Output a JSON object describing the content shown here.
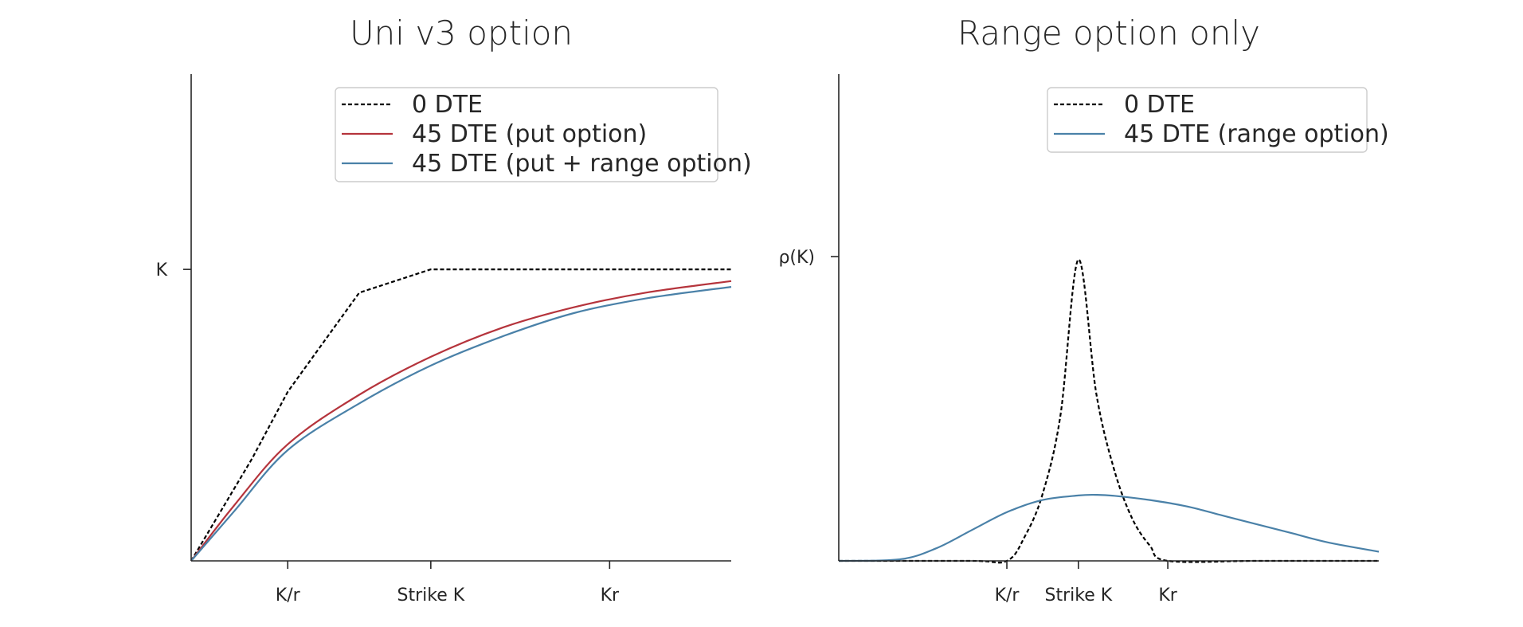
{
  "chart_data": [
    {
      "type": "line",
      "title": "Uni v3 option",
      "xlabel": "",
      "ylabel": "",
      "x_ticks": [
        {
          "label": "K/r",
          "value": 0.6
        },
        {
          "label": "Strike K",
          "value": 1.0
        },
        {
          "label": "Kr",
          "value": 1.5
        }
      ],
      "y_ticks": [
        {
          "label": "K",
          "value": 1.0
        }
      ],
      "xlim": [
        0.33,
        1.84
      ],
      "ylim": [
        0.0,
        1.67
      ],
      "legend": "top-right",
      "series": [
        {
          "name": "0 DTE",
          "color": "#000000",
          "style": "dashed",
          "x": [
            0.33,
            0.5,
            0.6,
            0.8,
            1.0,
            1.2,
            1.4,
            1.6,
            1.84
          ],
          "y": [
            0.0,
            0.35,
            0.58,
            0.92,
            1.0,
            1.0,
            1.0,
            1.0,
            1.0
          ]
        },
        {
          "name": "45 DTE (put option)",
          "color": "#b5343c",
          "style": "solid",
          "x": [
            0.33,
            0.45,
            0.6,
            0.8,
            1.0,
            1.2,
            1.4,
            1.6,
            1.84
          ],
          "y": [
            0.0,
            0.19,
            0.4,
            0.57,
            0.7,
            0.8,
            0.87,
            0.92,
            0.96
          ]
        },
        {
          "name": "45 DTE (put + range option)",
          "color": "#4a81a8",
          "style": "solid",
          "x": [
            0.33,
            0.45,
            0.6,
            0.8,
            1.0,
            1.2,
            1.4,
            1.6,
            1.84
          ],
          "y": [
            0.0,
            0.17,
            0.38,
            0.54,
            0.67,
            0.77,
            0.85,
            0.9,
            0.94
          ]
        }
      ]
    },
    {
      "type": "line",
      "title": "Range option only",
      "xlabel": "",
      "ylabel": "",
      "x_ticks": [
        {
          "label": "K/r",
          "value": 0.8
        },
        {
          "label": "Strike K",
          "value": 1.0
        },
        {
          "label": "Kr",
          "value": 1.25
        }
      ],
      "y_ticks": [
        {
          "label": "ρ(K)",
          "value": 1.0
        }
      ],
      "xlim": [
        0.33,
        1.84
      ],
      "ylim": [
        0.0,
        1.6
      ],
      "legend": "top-right",
      "series": [
        {
          "name": "0 DTE",
          "color": "#000000",
          "style": "dashed",
          "x": [
            0.33,
            0.7,
            0.8,
            0.85,
            0.9,
            0.95,
            1.0,
            1.05,
            1.1,
            1.15,
            1.2,
            1.25,
            1.5,
            1.84
          ],
          "y": [
            0.0,
            0.0,
            0.0,
            0.08,
            0.22,
            0.48,
            0.99,
            0.55,
            0.3,
            0.14,
            0.05,
            0.0,
            0.0,
            0.0
          ]
        },
        {
          "name": "45 DTE (range option)",
          "color": "#4a81a8",
          "style": "solid",
          "x": [
            0.33,
            0.5,
            0.6,
            0.7,
            0.8,
            0.9,
            1.0,
            1.05,
            1.1,
            1.2,
            1.3,
            1.4,
            1.5,
            1.6,
            1.7,
            1.84
          ],
          "y": [
            0.0,
            0.005,
            0.04,
            0.1,
            0.16,
            0.2,
            0.215,
            0.217,
            0.214,
            0.2,
            0.18,
            0.15,
            0.12,
            0.09,
            0.06,
            0.03
          ]
        }
      ]
    }
  ]
}
